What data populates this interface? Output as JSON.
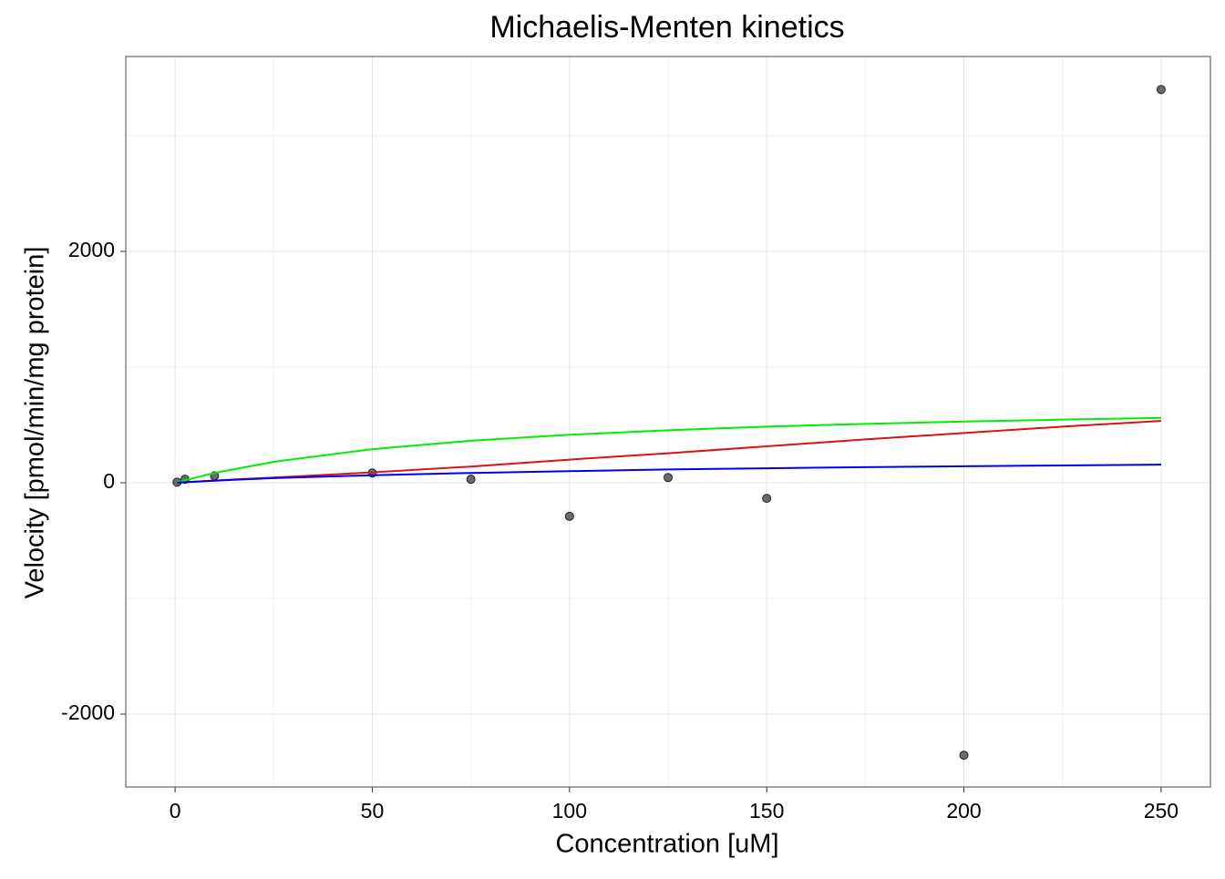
{
  "chart_data": {
    "type": "scatter",
    "title": "Michaelis-Menten kinetics",
    "x_label": "Concentration [uM]",
    "y_label": "Velocity [pmol/min/mg protein]",
    "xlim": [
      -12.5,
      262.5
    ],
    "ylim": [
      -2630,
      3685
    ],
    "xticks": [
      0,
      50,
      100,
      150,
      200,
      250
    ],
    "yticks": [
      -2000,
      0,
      2000
    ],
    "x_minor_ticks": [
      25,
      75,
      125,
      175,
      225
    ],
    "y_minor_ticks": [
      -1000,
      1000,
      3000
    ],
    "grid": true,
    "points": {
      "color": "#6b6b6b",
      "x": [
        0.5,
        2.5,
        10,
        50,
        75,
        100,
        125,
        150,
        200,
        250
      ],
      "values": [
        5,
        30,
        60,
        85,
        30,
        -290,
        45,
        -135,
        -2355,
        3400
      ]
    },
    "series": [
      {
        "color": "#00ee00",
        "x": [
          0.5,
          10,
          25,
          50,
          75,
          100,
          125,
          150,
          175,
          200,
          225,
          250
        ],
        "values": [
          5,
          85,
          181,
          290,
          363,
          415,
          454,
          485,
          509,
          529,
          546,
          560
        ]
      },
      {
        "color": "#dd1111",
        "x": [
          0.5,
          10,
          25,
          50,
          75,
          100,
          125,
          150,
          175,
          200,
          225,
          250
        ],
        "values": [
          1,
          20,
          45,
          90,
          140,
          200,
          255,
          315,
          375,
          430,
          485,
          535
        ]
      },
      {
        "color": "#0000ee",
        "x": [
          0.5,
          10,
          25,
          50,
          75,
          100,
          125,
          150,
          175,
          200,
          225,
          250
        ],
        "values": [
          1,
          18,
          40,
          65,
          85,
          100,
          115,
          125,
          135,
          143,
          150,
          157
        ]
      }
    ]
  }
}
